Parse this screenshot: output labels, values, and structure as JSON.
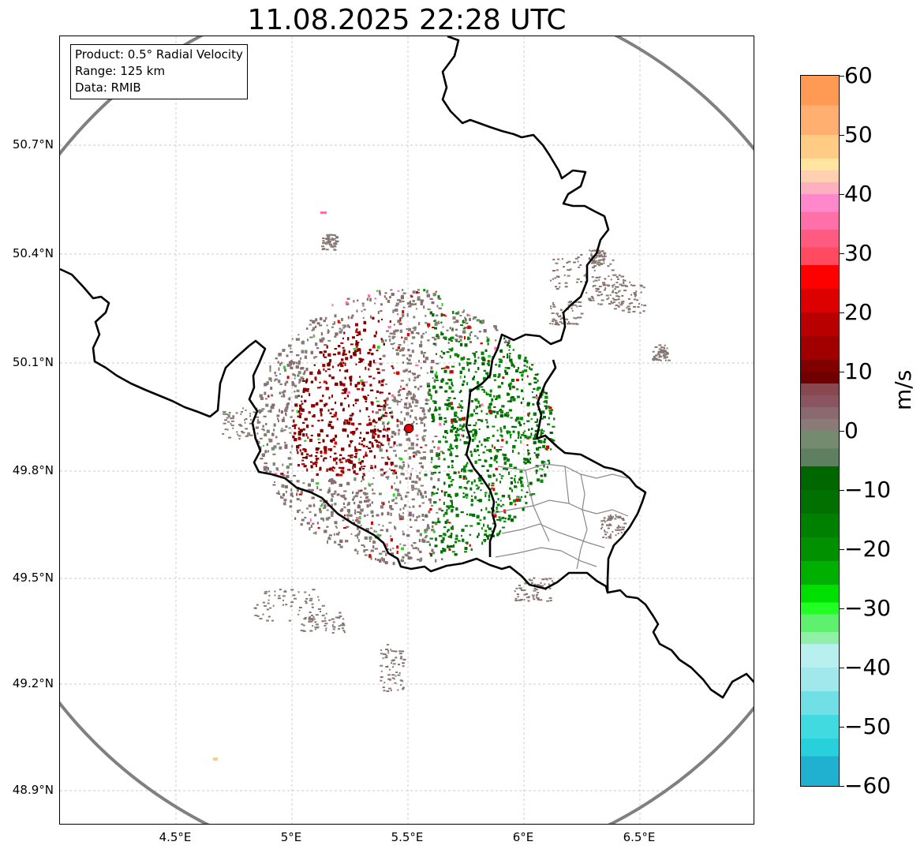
{
  "title": "11.08.2025 22:28 UTC",
  "info_box": {
    "product": "Product: 0.5° Radial Velocity",
    "range": "Range: 125 km",
    "data": "Data: RMIB"
  },
  "lat_ticks": [
    "50.7°N",
    "50.4°N",
    "50.1°N",
    "49.8°N",
    "49.5°N",
    "49.2°N",
    "48.9°N"
  ],
  "lon_ticks": [
    "4.5°E",
    "5°E",
    "5.5°E",
    "6°E",
    "6.5°E"
  ],
  "colorbar": {
    "unit": "m/s",
    "min": -60,
    "max": 60,
    "tick_values": [
      60,
      50,
      40,
      30,
      20,
      10,
      0,
      -10,
      -20,
      -30,
      -40,
      -50,
      -60
    ],
    "tick_labels": [
      "60",
      "50",
      "40",
      "30",
      "20",
      "10",
      "0",
      "−10",
      "−20",
      "−30",
      "−40",
      "−50",
      "−60"
    ]
  },
  "colors": {
    "range_ring": "#808080",
    "border": "#000000",
    "admin_border": "#888888",
    "radar_site": "#e00000",
    "approach": "#007000",
    "recede": "#800000",
    "zero": "#8a7570",
    "grid": "#bbbbbb"
  },
  "map_data": {
    "type": "radar_ppi",
    "radar_site": {
      "lon": 5.505,
      "lat": 49.914
    },
    "range_km": 125,
    "lon_range": [
      4.0,
      7.0
    ],
    "lat_range": [
      48.8,
      50.99
    ],
    "gridlines": true
  }
}
